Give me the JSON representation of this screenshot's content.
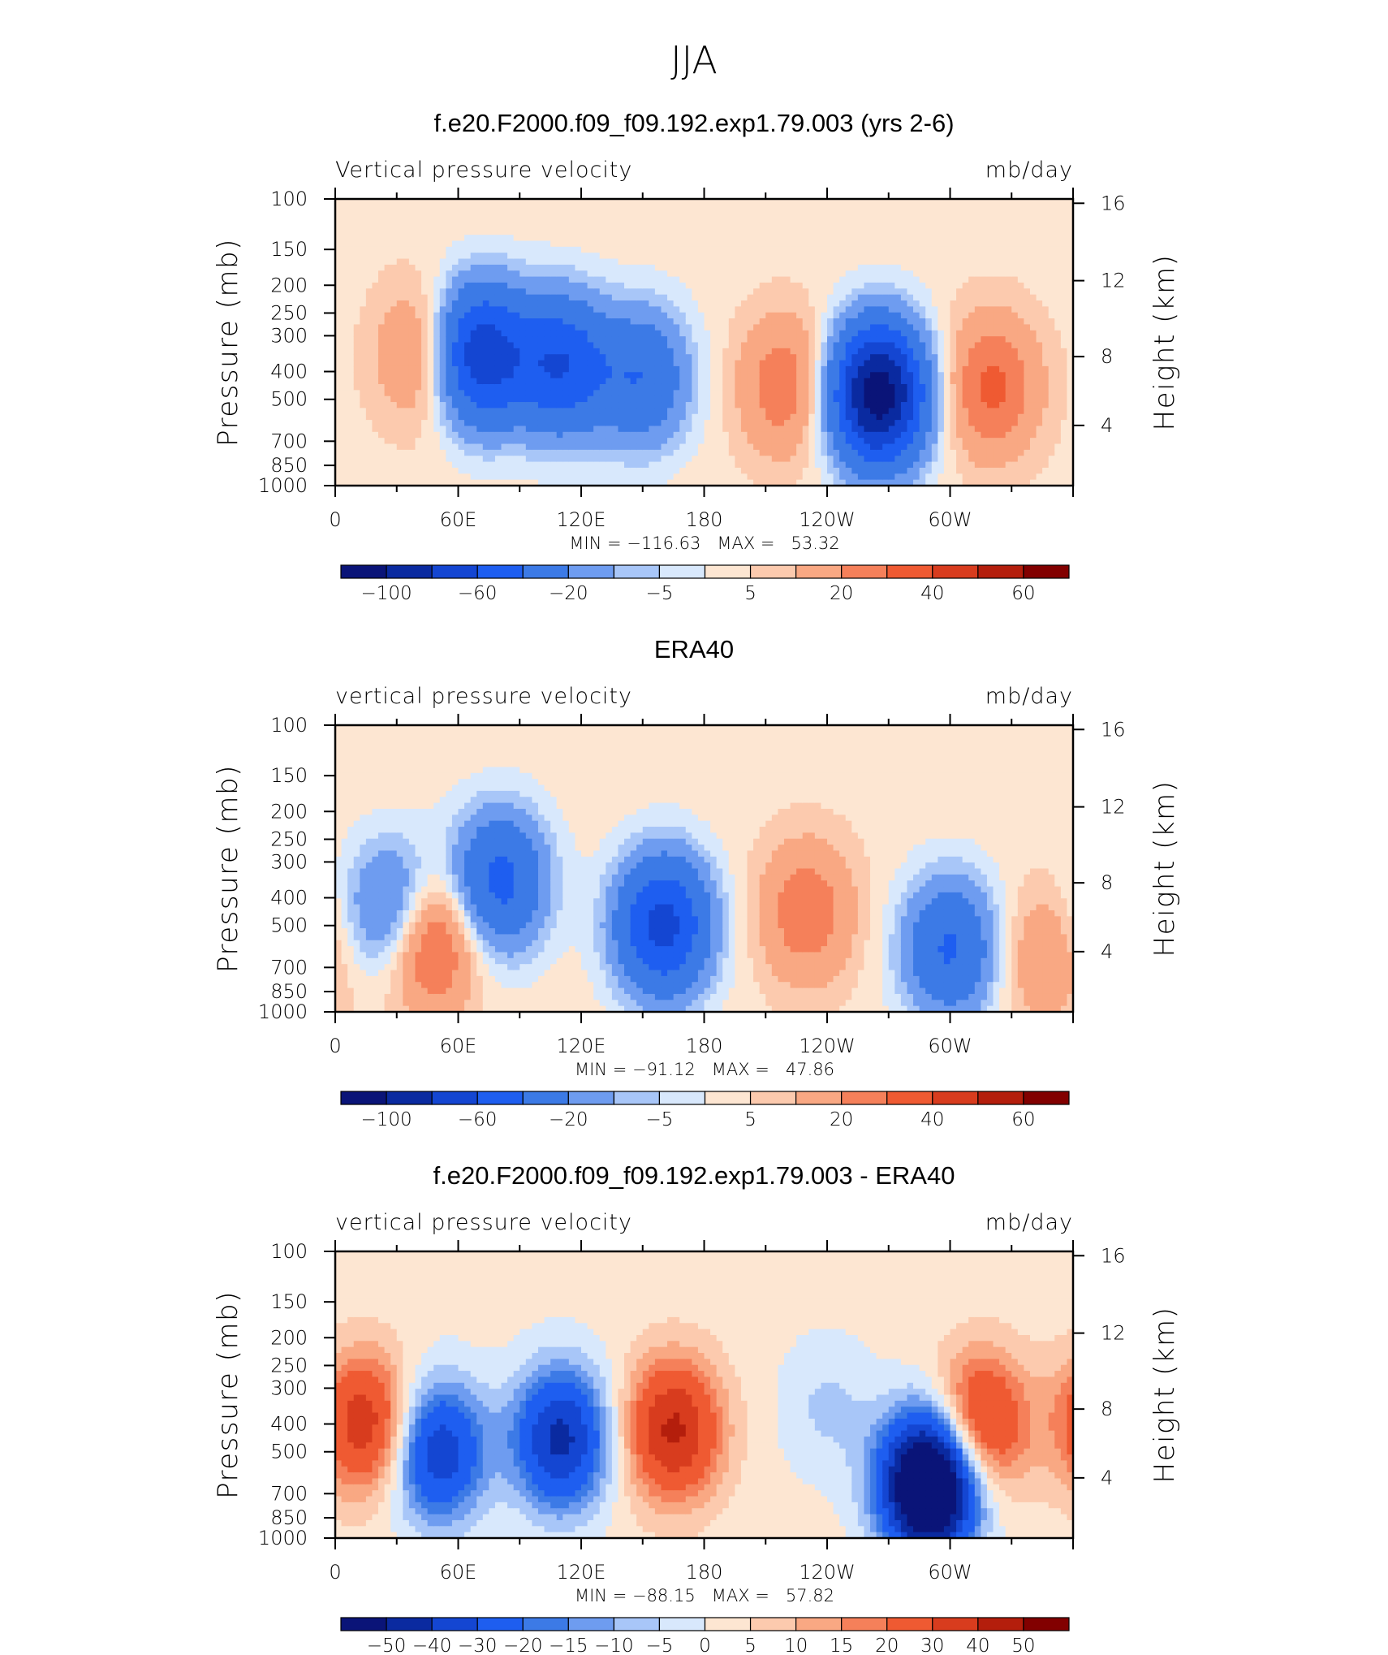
{
  "figure": {
    "title": "JJA"
  },
  "colors": {
    "panel_levels_1_2": [
      "#0a1478",
      "#0a2aa0",
      "#1446d2",
      "#1e5ef0",
      "#3c7ae6",
      "#6e9cf0",
      "#a8c6f8",
      "#d8e8fc",
      "#fde6d2",
      "#fccaae",
      "#f9a883",
      "#f5805a",
      "#ef5a32",
      "#d83c1e",
      "#b41e0c",
      "#820000"
    ],
    "panel_3": [
      "#0a1478",
      "#0a2aa0",
      "#1446d2",
      "#1e5ef0",
      "#3c7ae6",
      "#6e9cf0",
      "#a8c6f8",
      "#d8e8fc",
      "#fde6d2",
      "#fccaae",
      "#f9a883",
      "#f5805a",
      "#ef5a32",
      "#d83c1e",
      "#b41e0c",
      "#820000"
    ]
  },
  "chart_data": [
    {
      "type": "heatmap",
      "panel_title": "f.e20.F2000.f09_f09.192.exp1.79.003 (yrs 2-6)",
      "variable_label": "Vertical pressure velocity",
      "units": "mb/day",
      "ylabel": "Pressure (mb)",
      "y2label": "Height (km)",
      "x_tick_labels": [
        "0",
        "60E",
        "120E",
        "180",
        "120W",
        "60W"
      ],
      "xlim_deg": [
        0,
        360
      ],
      "y_ticks": [
        100,
        150,
        200,
        250,
        300,
        400,
        500,
        700,
        850,
        1000
      ],
      "y2_ticks": [
        "16",
        "12",
        "8",
        "4"
      ],
      "ylim_mb": [
        1000,
        100
      ],
      "stats": "MIN = −116.63   MAX =   53.32",
      "colorbar_labels": [
        "−100",
        "−60",
        "−20",
        "−5",
        "5",
        "20",
        "40",
        "60"
      ],
      "levels": [
        -100,
        -80,
        -60,
        -40,
        -20,
        -10,
        -5,
        0,
        5,
        10,
        20,
        30,
        40,
        50,
        60
      ],
      "features": [
        {
          "lon": 45,
          "p": 350,
          "value": 25
        },
        {
          "lon": 70,
          "p": 350,
          "value": -80
        },
        {
          "lon": 110,
          "p": 380,
          "value": -60
        },
        {
          "lon": 150,
          "p": 420,
          "value": -40
        },
        {
          "lon": 220,
          "p": 450,
          "value": 25
        },
        {
          "lon": 265,
          "p": 480,
          "value": -116
        },
        {
          "lon": 320,
          "p": 450,
          "value": 30
        }
      ]
    },
    {
      "type": "heatmap",
      "panel_title": "ERA40",
      "variable_label": "vertical pressure velocity",
      "units": "mb/day",
      "ylabel": "Pressure (mb)",
      "y2label": "Height (km)",
      "x_tick_labels": [
        "0",
        "60E",
        "120E",
        "180",
        "120W",
        "60W"
      ],
      "xlim_deg": [
        0,
        360
      ],
      "y_ticks": [
        100,
        150,
        200,
        250,
        300,
        400,
        500,
        700,
        850,
        1000
      ],
      "y2_ticks": [
        "16",
        "12",
        "8",
        "4"
      ],
      "ylim_mb": [
        1000,
        100
      ],
      "stats": "MIN = −91.12   MAX =   47.86",
      "colorbar_labels": [
        "−100",
        "−60",
        "−20",
        "−5",
        "5",
        "20",
        "40",
        "60"
      ],
      "levels": [
        -100,
        -80,
        -60,
        -40,
        -20,
        -10,
        -5,
        0,
        5,
        10,
        20,
        30,
        40,
        50,
        60
      ],
      "features": [
        {
          "lon": 30,
          "p": 450,
          "value": -40
        },
        {
          "lon": 45,
          "p": 550,
          "value": 45
        },
        {
          "lon": 80,
          "p": 350,
          "value": -50
        },
        {
          "lon": 160,
          "p": 500,
          "value": -70
        },
        {
          "lon": 230,
          "p": 450,
          "value": 25
        },
        {
          "lon": 300,
          "p": 600,
          "value": -45
        },
        {
          "lon": 345,
          "p": 650,
          "value": 15
        }
      ]
    },
    {
      "type": "heatmap",
      "panel_title": "f.e20.F2000.f09_f09.192.exp1.79.003 - ERA40",
      "variable_label": "vertical pressure velocity",
      "units": "mb/day",
      "ylabel": "Pressure (mb)",
      "y2label": "Height (km)",
      "x_tick_labels": [
        "0",
        "60E",
        "120E",
        "180",
        "120W",
        "60W"
      ],
      "xlim_deg": [
        0,
        360
      ],
      "y_ticks": [
        100,
        150,
        200,
        250,
        300,
        400,
        500,
        700,
        850,
        1000
      ],
      "y2_ticks": [
        "16",
        "12",
        "8",
        "4"
      ],
      "ylim_mb": [
        1000,
        100
      ],
      "stats": "MIN = −88.15   MAX =   57.82",
      "colorbar_labels": [
        "−50",
        "−40",
        "−30",
        "−20",
        "−15",
        "−10",
        "−5",
        "0",
        "5",
        "10",
        "15",
        "20",
        "30",
        "40",
        "50"
      ],
      "levels": [
        -50,
        -40,
        -30,
        -20,
        -15,
        -10,
        -5,
        0,
        5,
        10,
        15,
        20,
        30,
        40,
        50
      ],
      "features": [
        {
          "lon": 15,
          "p": 400,
          "value": 35
        },
        {
          "lon": 50,
          "p": 500,
          "value": -40
        },
        {
          "lon": 110,
          "p": 450,
          "value": -45
        },
        {
          "lon": 165,
          "p": 420,
          "value": 40
        },
        {
          "lon": 240,
          "p": 350,
          "value": -8
        },
        {
          "lon": 290,
          "p": 650,
          "value": -88
        },
        {
          "lon": 315,
          "p": 400,
          "value": 35
        }
      ]
    }
  ]
}
